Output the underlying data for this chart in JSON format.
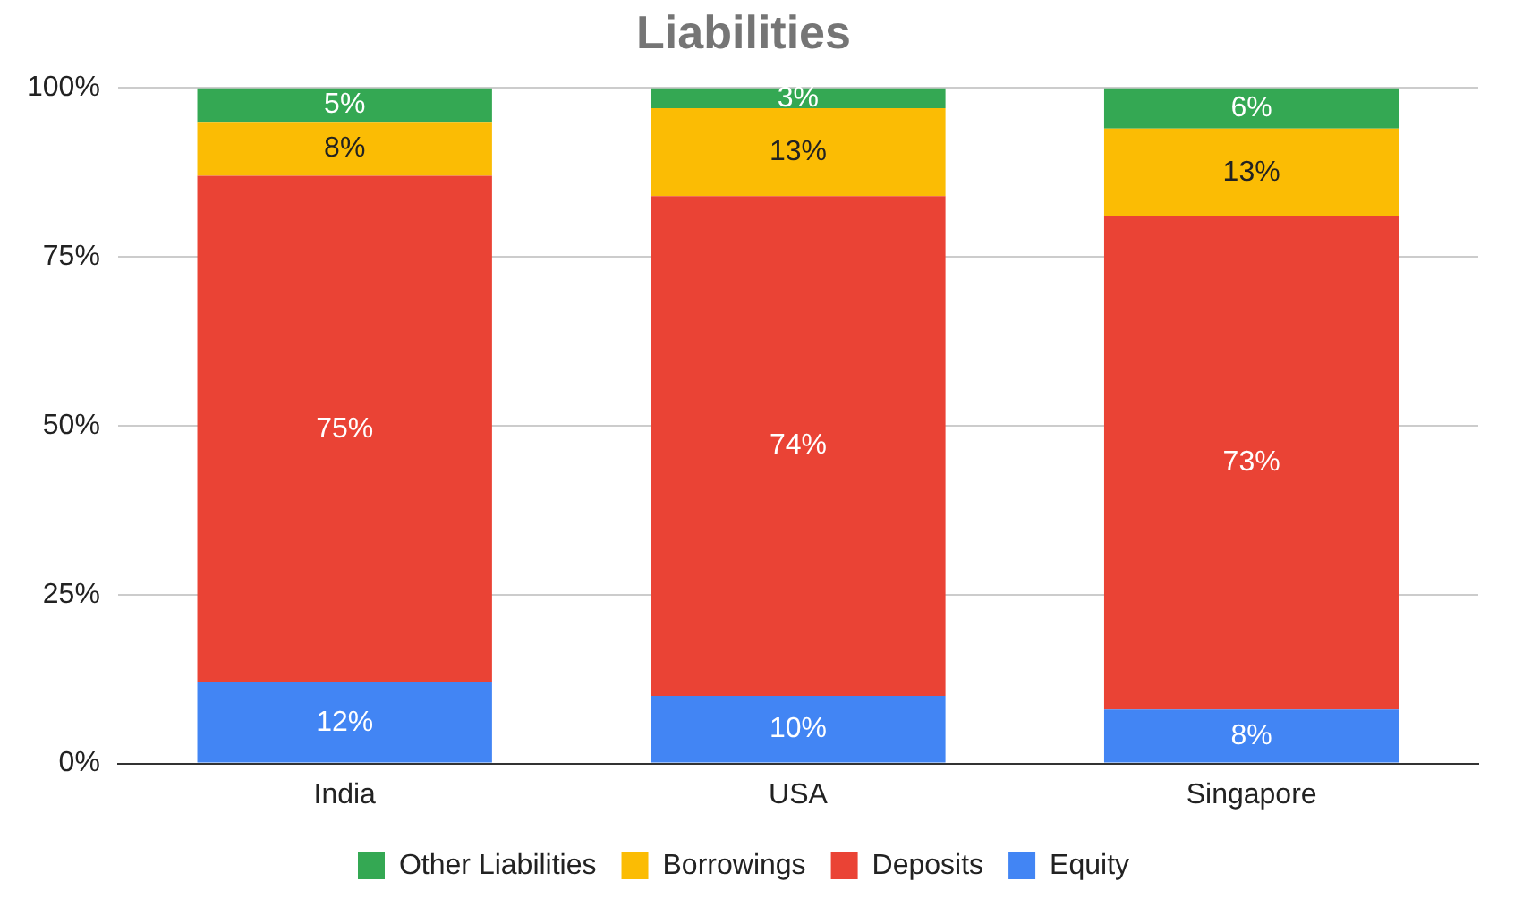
{
  "chart_data": {
    "type": "bar",
    "title": "Liabilities",
    "categories": [
      "India",
      "USA",
      "Singapore"
    ],
    "stacked": true,
    "series": [
      {
        "name": "Equity",
        "color": "#4285f4",
        "values": [
          12,
          10,
          8
        ],
        "value_labels": [
          "12%",
          "10%",
          "8%"
        ]
      },
      {
        "name": "Deposits",
        "color": "#ea4335",
        "values": [
          75,
          74,
          73
        ],
        "value_labels": [
          "75%",
          "74%",
          "73%"
        ]
      },
      {
        "name": "Borrowings",
        "color": "#fbbc04",
        "values": [
          8,
          13,
          13
        ],
        "value_labels": [
          "8%",
          "13%",
          "13%"
        ]
      },
      {
        "name": "Other Liabilities",
        "color": "#34a853",
        "values": [
          5,
          3,
          6
        ],
        "value_labels": [
          "5%",
          "3%",
          "6%"
        ]
      }
    ],
    "ylim": [
      0,
      100
    ],
    "yticks": [
      {
        "value": 0,
        "label": "0%"
      },
      {
        "value": 25,
        "label": "25%"
      },
      {
        "value": 50,
        "label": "50%"
      },
      {
        "value": 75,
        "label": "75%"
      },
      {
        "value": 100,
        "label": "100%"
      }
    ],
    "grid": "y",
    "legend": "bottom"
  }
}
